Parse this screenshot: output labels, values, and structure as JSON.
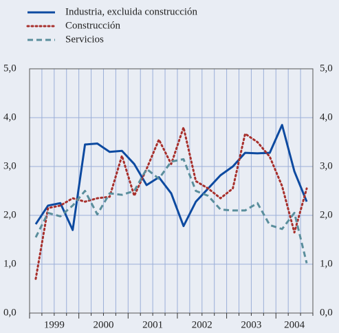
{
  "chart_data": {
    "type": "line",
    "categories": [
      null,
      null,
      null,
      null,
      null,
      null,
      null,
      null,
      null,
      null,
      null,
      null,
      null,
      null,
      null,
      null,
      null,
      null,
      null,
      null,
      null,
      null,
      null
    ],
    "year_labels": [
      "1999",
      "2000",
      "2001",
      "2002",
      "2003",
      "2004"
    ],
    "series": [
      {
        "name": "Industria, excluida construcción",
        "color": "#0d4aa0",
        "style": "solid",
        "values": [
          1.82,
          2.2,
          2.25,
          1.7,
          3.45,
          3.47,
          3.3,
          3.32,
          3.05,
          2.62,
          2.78,
          2.45,
          1.78,
          2.28,
          2.55,
          2.82,
          3.0,
          3.28,
          3.27,
          3.28,
          3.85,
          2.9,
          2.28
        ]
      },
      {
        "name": "Construcción",
        "color": "#a8302c",
        "style": "dotted",
        "values": [
          0.7,
          2.15,
          2.2,
          2.35,
          2.28,
          2.35,
          2.38,
          3.22,
          2.4,
          2.95,
          3.55,
          3.05,
          3.8,
          2.7,
          2.55,
          2.35,
          2.55,
          3.67,
          3.5,
          3.2,
          2.6,
          1.65,
          2.55
        ]
      },
      {
        "name": "Servicios",
        "color": "#5a8e9c",
        "style": "dashed",
        "values": [
          1.55,
          2.05,
          1.98,
          2.2,
          2.5,
          2.02,
          2.45,
          2.42,
          2.5,
          2.95,
          2.75,
          3.1,
          3.15,
          2.5,
          2.4,
          2.12,
          2.1,
          2.1,
          2.25,
          1.8,
          1.72,
          2.05,
          1.02
        ]
      }
    ],
    "ylim": [
      0,
      5
    ],
    "yticks": [
      {
        "value": 0,
        "label": "0,0"
      },
      {
        "value": 1,
        "label": "1,0"
      },
      {
        "value": 2,
        "label": "2,0"
      },
      {
        "value": 3,
        "label": "3,0"
      },
      {
        "value": 4,
        "label": "4,0"
      },
      {
        "value": 5,
        "label": "5,0"
      }
    ],
    "grid": true
  }
}
